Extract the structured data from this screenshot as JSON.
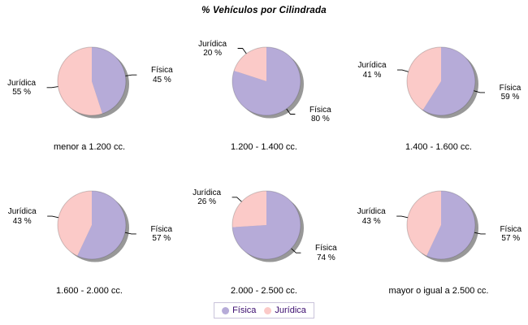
{
  "title": "% Vehículos por Cilindrada",
  "legend": {
    "position": "bottom-center",
    "text_color": "#3A0B6E",
    "border_color": "#C8C2DA",
    "items": [
      {
        "label": "Física",
        "color": "#B6ABD8"
      },
      {
        "label": "Jurídica",
        "color": "#FBCAC8"
      }
    ]
  },
  "colors": {
    "background": "#FFFFFF",
    "shadow": "#989898",
    "label_text": "#000000",
    "leader_line": "#000000"
  },
  "chart_data": [
    {
      "type": "pie",
      "category": "menor a 1.200 cc.",
      "slices": [
        {
          "label": "Física",
          "value": 45,
          "pct_label": "45 %"
        },
        {
          "label": "Jurídica",
          "value": 55,
          "pct_label": "55 %"
        }
      ]
    },
    {
      "type": "pie",
      "category": "1.200 - 1.400 cc.",
      "slices": [
        {
          "label": "Física",
          "value": 80,
          "pct_label": "80 %"
        },
        {
          "label": "Jurídica",
          "value": 20,
          "pct_label": "20 %"
        }
      ]
    },
    {
      "type": "pie",
      "category": "1.400 - 1.600 cc.",
      "slices": [
        {
          "label": "Física",
          "value": 59,
          "pct_label": "59 %"
        },
        {
          "label": "Jurídica",
          "value": 41,
          "pct_label": "41 %"
        }
      ]
    },
    {
      "type": "pie",
      "category": "1.600 - 2.000 cc.",
      "slices": [
        {
          "label": "Física",
          "value": 57,
          "pct_label": "57 %"
        },
        {
          "label": "Jurídica",
          "value": 43,
          "pct_label": "43 %"
        }
      ]
    },
    {
      "type": "pie",
      "category": "2.000 - 2.500 cc.",
      "slices": [
        {
          "label": "Física",
          "value": 74,
          "pct_label": "74 %"
        },
        {
          "label": "Jurídica",
          "value": 26,
          "pct_label": "26 %"
        }
      ]
    },
    {
      "type": "pie",
      "category": "mayor o igual a 2.500 cc.",
      "slices": [
        {
          "label": "Física",
          "value": 57,
          "pct_label": "57 %"
        },
        {
          "label": "Jurídica",
          "value": 43,
          "pct_label": "43 %"
        }
      ]
    }
  ]
}
